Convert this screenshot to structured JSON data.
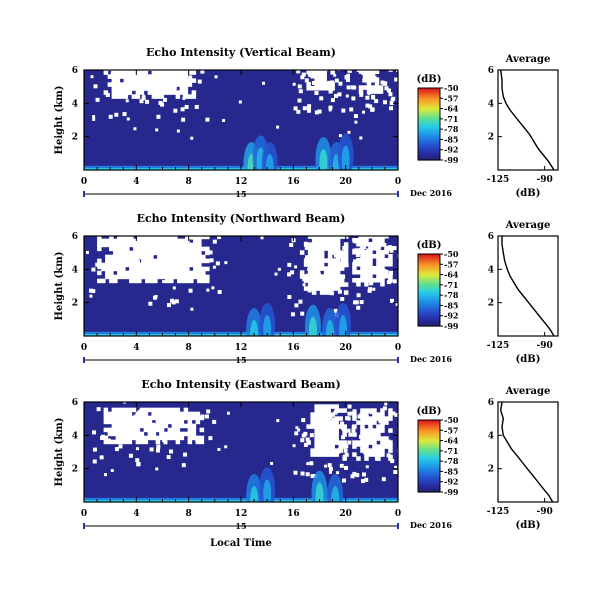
{
  "chart_data": [
    {
      "type": "heatmap",
      "panel_id": "vertical",
      "title": "Echo Intensity (Vertical Beam)",
      "ylabel": "Height (km)",
      "xlabel": "",
      "x_ticks": [
        "0",
        "4",
        "8",
        "12",
        "16",
        "20",
        "0"
      ],
      "y_ticks": [
        "6",
        "4",
        "2"
      ],
      "ylim_km": [
        0,
        6
      ],
      "xlim_hours": [
        0,
        24
      ],
      "date_label": "Dec 2016",
      "day_label": "15",
      "colorbar": {
        "unit": "(dB)",
        "ticks": [
          "-50",
          "-57",
          "-64",
          "-71",
          "-78",
          "-85",
          "-92",
          "-99"
        ],
        "range_db": [
          -99,
          -50
        ]
      },
      "clear_air_regions": [
        {
          "t0": 1.5,
          "t1": 8.5,
          "h0": 4.3,
          "h1": 6.0
        },
        {
          "t0": 17.0,
          "t1": 19.0,
          "h0": 4.8,
          "h1": 6.0
        },
        {
          "t0": 21.0,
          "t1": 23.0,
          "h0": 4.6,
          "h1": 6.0
        }
      ],
      "echo_cores": [
        {
          "t": 12.8,
          "h": 0.6,
          "db": -72
        },
        {
          "t": 13.5,
          "h": 1.0,
          "db": -78
        },
        {
          "t": 14.2,
          "h": 0.6,
          "db": -80
        },
        {
          "t": 18.3,
          "h": 0.9,
          "db": -74
        },
        {
          "t": 19.3,
          "h": 0.6,
          "db": -78
        },
        {
          "t": 20.0,
          "h": 1.1,
          "db": -80
        }
      ],
      "average_profile": {
        "title": "Average",
        "xlabel": "(dB)",
        "x_ticks": [
          "-125",
          "-90"
        ],
        "y_ticks": [
          "6",
          "4",
          "2"
        ],
        "xlim_db": [
          -125,
          -80
        ],
        "ylim_km": [
          0,
          6
        ],
        "db_values": [
          -83,
          -87,
          -91,
          -95,
          -98,
          -101,
          -105,
          -109,
          -113,
          -116,
          -119,
          -121,
          -122,
          -122,
          -123
        ],
        "height_km": [
          0.0,
          0.5,
          0.9,
          1.3,
          1.7,
          2.1,
          2.5,
          2.9,
          3.3,
          3.6,
          4.0,
          4.4,
          4.9,
          5.4,
          6.0
        ]
      }
    },
    {
      "type": "heatmap",
      "panel_id": "northward",
      "title": "Echo Intensity (Northward Beam)",
      "ylabel": "Height (km)",
      "xlabel": "",
      "x_ticks": [
        "0",
        "4",
        "8",
        "12",
        "16",
        "20",
        "0"
      ],
      "y_ticks": [
        "6",
        "4",
        "2"
      ],
      "ylim_km": [
        0,
        6
      ],
      "xlim_hours": [
        0,
        24
      ],
      "date_label": "Dec 2016",
      "day_label": "15",
      "colorbar": {
        "unit": "(dB)",
        "ticks": [
          "-50",
          "-57",
          "-64",
          "-71",
          "-78",
          "-85",
          "-92",
          "-99"
        ],
        "range_db": [
          -99,
          -50
        ]
      },
      "clear_air_regions": [
        {
          "t0": 1.0,
          "t1": 9.5,
          "h0": 3.2,
          "h1": 6.0
        },
        {
          "t0": 16.5,
          "t1": 20.0,
          "h0": 2.5,
          "h1": 6.0
        },
        {
          "t0": 20.5,
          "t1": 23.5,
          "h0": 3.0,
          "h1": 6.0
        }
      ],
      "echo_cores": [
        {
          "t": 13.0,
          "h": 0.6,
          "db": -76
        },
        {
          "t": 14.0,
          "h": 0.9,
          "db": -80
        },
        {
          "t": 17.5,
          "h": 0.8,
          "db": -74
        },
        {
          "t": 18.8,
          "h": 0.6,
          "db": -78
        },
        {
          "t": 19.8,
          "h": 0.9,
          "db": -80
        }
      ],
      "average_profile": {
        "title": "Average",
        "xlabel": "(dB)",
        "x_ticks": [
          "-125",
          "-90"
        ],
        "y_ticks": [
          "6",
          "4",
          "2"
        ],
        "xlim_db": [
          -125,
          -80
        ],
        "ylim_km": [
          0,
          6
        ],
        "db_values": [
          -83,
          -86,
          -90,
          -94,
          -98,
          -102,
          -106,
          -110,
          -113,
          -116,
          -118,
          -120,
          -121,
          -122,
          -122
        ],
        "height_km": [
          0.0,
          0.4,
          0.8,
          1.2,
          1.6,
          2.0,
          2.4,
          2.8,
          3.2,
          3.6,
          4.0,
          4.5,
          5.0,
          5.5,
          6.0
        ]
      }
    },
    {
      "type": "heatmap",
      "panel_id": "eastward",
      "title": "Echo Intensity (Eastward Beam)",
      "ylabel": "Height (km)",
      "xlabel": "Local Time",
      "x_ticks": [
        "0",
        "4",
        "8",
        "12",
        "16",
        "20",
        "0"
      ],
      "y_ticks": [
        "6",
        "4",
        "2"
      ],
      "ylim_km": [
        0,
        6
      ],
      "xlim_hours": [
        0,
        24
      ],
      "date_label": "Dec 2016",
      "day_label": "15",
      "colorbar": {
        "unit": "(dB)",
        "ticks": [
          "-50",
          "-57",
          "-64",
          "-71",
          "-78",
          "-85",
          "-92",
          "-99"
        ],
        "range_db": [
          -99,
          -50
        ]
      },
      "clear_air_regions": [
        {
          "t0": 1.5,
          "t1": 9.0,
          "h0": 3.5,
          "h1": 5.5
        },
        {
          "t0": 17.0,
          "t1": 20.0,
          "h0": 2.5,
          "h1": 5.8
        },
        {
          "t0": 20.5,
          "t1": 23.5,
          "h0": 2.5,
          "h1": 5.5
        }
      ],
      "echo_cores": [
        {
          "t": 13.0,
          "h": 0.6,
          "db": -76
        },
        {
          "t": 14.0,
          "h": 1.0,
          "db": -80
        },
        {
          "t": 18.0,
          "h": 0.8,
          "db": -74
        },
        {
          "t": 19.2,
          "h": 0.6,
          "db": -78
        }
      ],
      "average_profile": {
        "title": "Average",
        "xlabel": "(dB)",
        "x_ticks": [
          "-125",
          "-90"
        ],
        "y_ticks": [
          "6",
          "4",
          "2"
        ],
        "xlim_db": [
          -125,
          -80
        ],
        "ylim_km": [
          0,
          6
        ],
        "db_values": [
          -84,
          -87,
          -91,
          -95,
          -99,
          -103,
          -107,
          -111,
          -115,
          -118,
          -121,
          -122,
          -121,
          -123,
          -122
        ],
        "height_km": [
          0.0,
          0.4,
          0.8,
          1.2,
          1.6,
          2.0,
          2.4,
          2.8,
          3.2,
          3.6,
          4.0,
          4.5,
          5.0,
          5.5,
          6.0
        ]
      }
    }
  ]
}
